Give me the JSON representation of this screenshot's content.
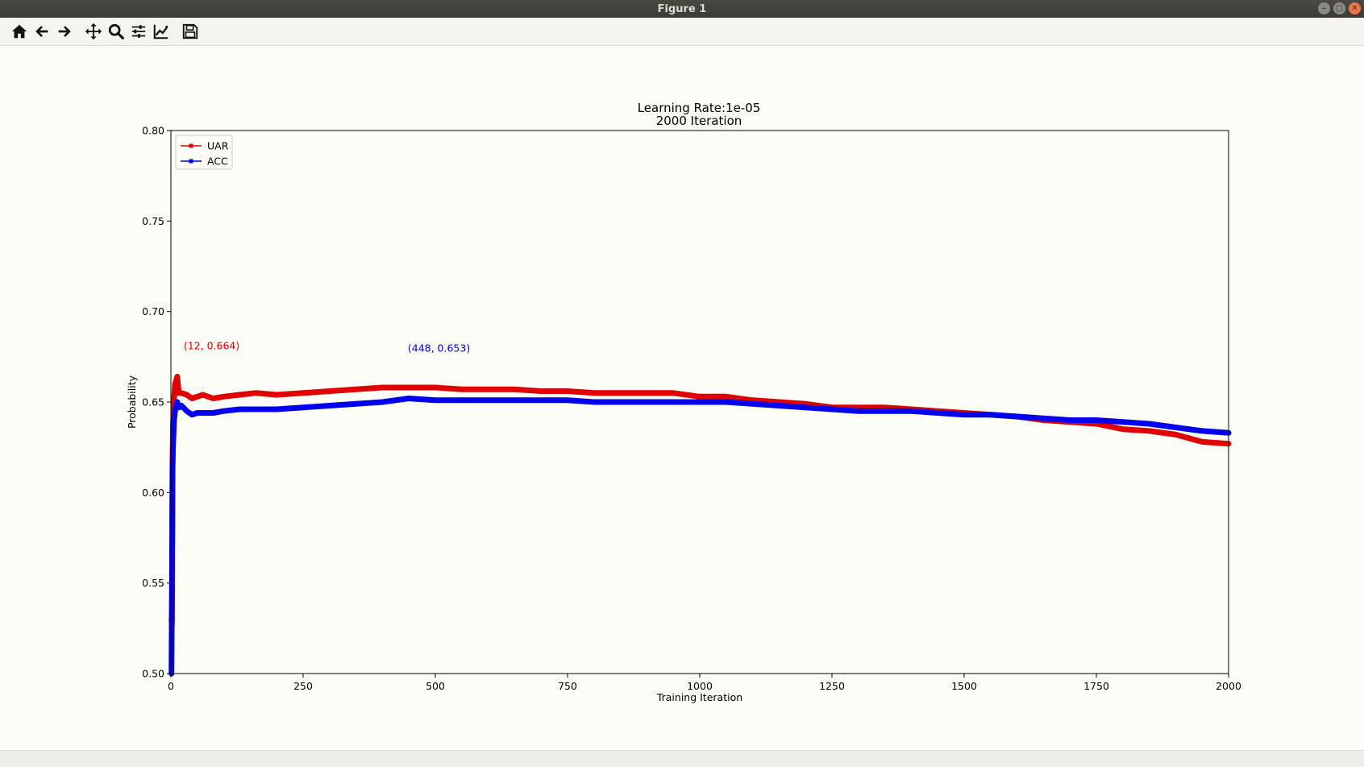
{
  "window": {
    "title": "Figure 1"
  },
  "toolbar": {
    "icons": [
      "home-icon",
      "back-arrow-icon",
      "forward-arrow-icon",
      "pan-icon",
      "zoom-icon",
      "configure-subplots-icon",
      "edit-axes-icon",
      "save-icon"
    ]
  },
  "colors": {
    "uar": "#e00000",
    "acc": "#0000ee"
  },
  "chart_data": {
    "type": "line",
    "title": "Learning Rate:1e-05",
    "subtitle": "2000 Iteration",
    "xlabel": "Training Iteration",
    "ylabel": "Probability",
    "xlim": [
      0,
      2000
    ],
    "ylim": [
      0.5,
      0.8
    ],
    "xticks": [
      "0",
      "250",
      "500",
      "750",
      "1000",
      "1250",
      "1500",
      "1750",
      "2000"
    ],
    "yticks": [
      "0.50",
      "0.55",
      "0.60",
      "0.65",
      "0.70",
      "0.75",
      "0.80"
    ],
    "legend_position": "top-left",
    "grid": false,
    "series": [
      {
        "name": "UAR",
        "x": [
          1,
          2,
          3,
          4,
          5,
          6,
          8,
          10,
          12,
          15,
          20,
          30,
          40,
          50,
          60,
          80,
          100,
          130,
          160,
          200,
          250,
          300,
          350,
          400,
          450,
          500,
          550,
          600,
          650,
          700,
          750,
          800,
          850,
          900,
          950,
          1000,
          1050,
          1100,
          1150,
          1200,
          1250,
          1300,
          1350,
          1400,
          1450,
          1500,
          1550,
          1600,
          1650,
          1700,
          1750,
          1800,
          1850,
          1900,
          1950,
          2000
        ],
        "y": [
          0.53,
          0.527,
          0.616,
          0.638,
          0.645,
          0.652,
          0.66,
          0.662,
          0.664,
          0.655,
          0.655,
          0.654,
          0.652,
          0.653,
          0.654,
          0.652,
          0.653,
          0.654,
          0.655,
          0.654,
          0.655,
          0.656,
          0.657,
          0.658,
          0.658,
          0.658,
          0.657,
          0.657,
          0.657,
          0.656,
          0.656,
          0.655,
          0.655,
          0.655,
          0.655,
          0.653,
          0.653,
          0.651,
          0.65,
          0.649,
          0.647,
          0.647,
          0.647,
          0.646,
          0.645,
          0.644,
          0.643,
          0.642,
          0.64,
          0.639,
          0.638,
          0.635,
          0.634,
          0.632,
          0.628,
          0.627
        ]
      },
      {
        "name": "ACC",
        "x": [
          1,
          2,
          3,
          4,
          5,
          6,
          8,
          10,
          12,
          15,
          20,
          30,
          40,
          50,
          60,
          80,
          100,
          130,
          160,
          200,
          250,
          300,
          350,
          400,
          450,
          500,
          550,
          600,
          650,
          700,
          750,
          800,
          850,
          900,
          950,
          1000,
          1050,
          1100,
          1150,
          1200,
          1250,
          1300,
          1350,
          1400,
          1450,
          1500,
          1550,
          1600,
          1650,
          1700,
          1750,
          1800,
          1850,
          1900,
          1950,
          2000
        ],
        "y": [
          0.5,
          0.548,
          0.613,
          0.625,
          0.633,
          0.64,
          0.645,
          0.648,
          0.65,
          0.647,
          0.648,
          0.645,
          0.643,
          0.644,
          0.644,
          0.644,
          0.645,
          0.646,
          0.646,
          0.646,
          0.647,
          0.648,
          0.649,
          0.65,
          0.652,
          0.651,
          0.651,
          0.651,
          0.651,
          0.651,
          0.651,
          0.65,
          0.65,
          0.65,
          0.65,
          0.65,
          0.65,
          0.649,
          0.648,
          0.647,
          0.646,
          0.645,
          0.645,
          0.645,
          0.644,
          0.643,
          0.643,
          0.642,
          0.641,
          0.64,
          0.64,
          0.639,
          0.638,
          0.636,
          0.634,
          0.633
        ]
      }
    ],
    "annotations": [
      {
        "text": "(12, 0.664)",
        "x": 12,
        "y": 0.664,
        "color": "#e00000"
      },
      {
        "text": "(448, 0.653)",
        "x": 448,
        "y": 0.653,
        "color": "#0000ee"
      }
    ]
  }
}
